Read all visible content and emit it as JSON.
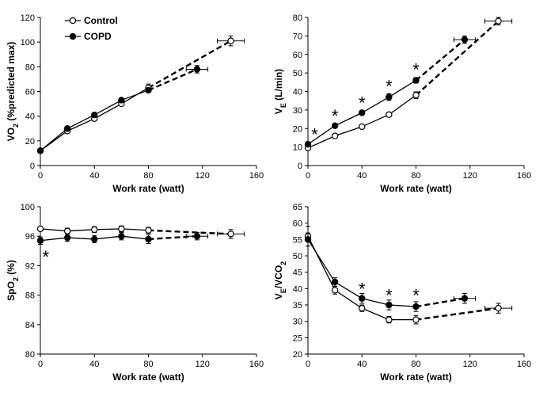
{
  "figure": {
    "legend": [
      {
        "name": "Control",
        "marker": "open-circle"
      },
      {
        "name": "COPD",
        "marker": "filled-circle"
      }
    ]
  },
  "chart_data": [
    {
      "id": "vo2",
      "type": "line",
      "ylabel_main": "VO",
      "ylabel_sub": "2",
      "ylabel_rest": " (%predicted max)",
      "xlabel": "Work rate (watt)",
      "xlim": [
        0,
        160
      ],
      "ylim": [
        0,
        120
      ],
      "xticks": [
        "0",
        "40",
        "80",
        "120",
        "160"
      ],
      "yticks": [
        "0",
        "20",
        "40",
        "60",
        "80",
        "100",
        "120"
      ],
      "series": [
        {
          "name": "Control",
          "marker": "open",
          "points": [
            {
              "x": 0,
              "y": 12
            },
            {
              "x": 20,
              "y": 28
            },
            {
              "x": 40,
              "y": 38
            },
            {
              "x": 60,
              "y": 50
            },
            {
              "x": 80,
              "y": 63
            }
          ],
          "dashed": [
            {
              "x": 80,
              "y": 63
            },
            {
              "x": 141,
              "y": 101
            }
          ],
          "errors": [
            {
              "x": 80,
              "y": 63,
              "yerr": 3
            },
            {
              "x": 141,
              "y": 101,
              "yerr": 4,
              "xerr": 10
            }
          ]
        },
        {
          "name": "COPD",
          "marker": "filled",
          "points": [
            {
              "x": 0,
              "y": 12
            },
            {
              "x": 20,
              "y": 30
            },
            {
              "x": 40,
              "y": 41
            },
            {
              "x": 60,
              "y": 53
            },
            {
              "x": 80,
              "y": 61
            }
          ],
          "dashed": [
            {
              "x": 80,
              "y": 61
            },
            {
              "x": 116,
              "y": 78
            }
          ],
          "errors": [
            {
              "x": 116,
              "y": 78,
              "yerr": 3,
              "xerr": 8
            }
          ]
        }
      ],
      "significance": []
    },
    {
      "id": "ve",
      "type": "line",
      "ylabel_main": "V",
      "ylabel_sub": "E",
      "ylabel_rest": " (L/min)",
      "xlabel": "Work rate (watt)",
      "xlim": [
        0,
        160
      ],
      "ylim": [
        0,
        80
      ],
      "xticks": [
        "0",
        "40",
        "80",
        "120",
        "160"
      ],
      "yticks": [
        "0",
        "10",
        "20",
        "30",
        "40",
        "50",
        "60",
        "70",
        "80"
      ],
      "series": [
        {
          "name": "Control",
          "marker": "open",
          "points": [
            {
              "x": 0,
              "y": 9.5
            },
            {
              "x": 20,
              "y": 16
            },
            {
              "x": 40,
              "y": 21
            },
            {
              "x": 60,
              "y": 27.5
            },
            {
              "x": 80,
              "y": 38
            }
          ],
          "dashed": [
            {
              "x": 80,
              "y": 38
            },
            {
              "x": 141,
              "y": 78
            }
          ],
          "errors": [
            {
              "x": 80,
              "y": 38,
              "yerr": 1.8
            },
            {
              "x": 141,
              "y": 78,
              "yerr": 2,
              "xerr": 10
            }
          ]
        },
        {
          "name": "COPD",
          "marker": "filled",
          "points": [
            {
              "x": 0,
              "y": 11.5
            },
            {
              "x": 20,
              "y": 21.5
            },
            {
              "x": 40,
              "y": 28.5
            },
            {
              "x": 60,
              "y": 37
            },
            {
              "x": 80,
              "y": 46
            }
          ],
          "dashed": [
            {
              "x": 80,
              "y": 46
            },
            {
              "x": 116,
              "y": 68
            }
          ],
          "errors": [
            {
              "x": 60,
              "y": 37,
              "yerr": 1.8
            },
            {
              "x": 80,
              "y": 46,
              "yerr": 1.5
            },
            {
              "x": 116,
              "y": 68,
              "yerr": 2,
              "xerr": 8
            }
          ]
        }
      ],
      "significance": [
        {
          "x": 5,
          "y": 17,
          "label": "*"
        },
        {
          "x": 20,
          "y": 27,
          "label": "*"
        },
        {
          "x": 40,
          "y": 34,
          "label": "*"
        },
        {
          "x": 60,
          "y": 43,
          "label": "*"
        },
        {
          "x": 80,
          "y": 52,
          "label": "*"
        }
      ]
    },
    {
      "id": "spo2",
      "type": "line",
      "ylabel_main": "SpO",
      "ylabel_sub": "2",
      "ylabel_rest": " (%)",
      "xlabel": "Work rate (watt)",
      "xlim": [
        0,
        160
      ],
      "ylim": [
        80,
        100
      ],
      "xticks": [
        "0",
        "40",
        "80",
        "120",
        "160"
      ],
      "yticks": [
        "80",
        "84",
        "88",
        "92",
        "96",
        "100"
      ],
      "series": [
        {
          "name": "Control",
          "marker": "open",
          "points": [
            {
              "x": 0,
              "y": 97
            },
            {
              "x": 20,
              "y": 96.7
            },
            {
              "x": 40,
              "y": 96.9
            },
            {
              "x": 60,
              "y": 97
            },
            {
              "x": 80,
              "y": 96.8
            }
          ],
          "dashed": [
            {
              "x": 80,
              "y": 96.8
            },
            {
              "x": 141,
              "y": 96.3
            }
          ],
          "errors": [
            {
              "x": 20,
              "y": 96.7,
              "yerr": 0.4
            },
            {
              "x": 40,
              "y": 96.9,
              "yerr": 0.4
            },
            {
              "x": 60,
              "y": 97,
              "yerr": 0.4
            },
            {
              "x": 80,
              "y": 96.8,
              "yerr": 0.4
            },
            {
              "x": 141,
              "y": 96.3,
              "yerr": 0.6,
              "xerr": 10
            }
          ]
        },
        {
          "name": "COPD",
          "marker": "filled",
          "points": [
            {
              "x": 0,
              "y": 95.4
            },
            {
              "x": 20,
              "y": 95.8
            },
            {
              "x": 40,
              "y": 95.6
            },
            {
              "x": 60,
              "y": 96
            },
            {
              "x": 80,
              "y": 95.6
            }
          ],
          "dashed": [
            {
              "x": 80,
              "y": 95.6
            },
            {
              "x": 116,
              "y": 96
            }
          ],
          "errors": [
            {
              "x": 0,
              "y": 95.4,
              "yerr": 0.5
            },
            {
              "x": 20,
              "y": 95.8,
              "yerr": 0.5
            },
            {
              "x": 40,
              "y": 95.6,
              "yerr": 0.5
            },
            {
              "x": 60,
              "y": 96,
              "yerr": 0.5
            },
            {
              "x": 80,
              "y": 95.6,
              "yerr": 0.6
            },
            {
              "x": 116,
              "y": 96,
              "yerr": 0.5,
              "xerr": 8
            }
          ]
        }
      ],
      "significance": [
        {
          "x": 4,
          "y": 93.2,
          "label": "*"
        }
      ]
    },
    {
      "id": "ve_vco2",
      "type": "line",
      "ylabel_main": "V",
      "ylabel_sub": "E",
      "ylabel_rest": "/VCO",
      "ylabel_sub2": "2",
      "xlabel": "Work rate (watt)",
      "xlim": [
        0,
        160
      ],
      "ylim": [
        20,
        65
      ],
      "xticks": [
        "0",
        "40",
        "80",
        "120",
        "160"
      ],
      "yticks": [
        "20",
        "25",
        "30",
        "35",
        "40",
        "45",
        "50",
        "55",
        "60",
        "65"
      ],
      "series": [
        {
          "name": "Control",
          "marker": "open",
          "points": [
            {
              "x": 0,
              "y": 56
            },
            {
              "x": 20,
              "y": 39.5
            },
            {
              "x": 40,
              "y": 34
            },
            {
              "x": 60,
              "y": 30.5
            },
            {
              "x": 80,
              "y": 30.5
            }
          ],
          "dashed": [
            {
              "x": 80,
              "y": 30.5
            },
            {
              "x": 141,
              "y": 34
            }
          ],
          "errors": [
            {
              "x": 0,
              "y": 56,
              "yerr": 3
            },
            {
              "x": 20,
              "y": 39.5,
              "yerr": 1.2
            },
            {
              "x": 40,
              "y": 34,
              "yerr": 1
            },
            {
              "x": 60,
              "y": 30.5,
              "yerr": 1
            },
            {
              "x": 80,
              "y": 30.5,
              "yerr": 1.3
            },
            {
              "x": 141,
              "y": 34,
              "yerr": 1.5,
              "xerr": 10
            }
          ]
        },
        {
          "name": "COPD",
          "marker": "filled",
          "points": [
            {
              "x": 0,
              "y": 55
            },
            {
              "x": 20,
              "y": 42
            },
            {
              "x": 40,
              "y": 37
            },
            {
              "x": 60,
              "y": 35
            },
            {
              "x": 80,
              "y": 34.5
            }
          ],
          "dashed": [
            {
              "x": 80,
              "y": 34.5
            },
            {
              "x": 116,
              "y": 37
            }
          ],
          "errors": [
            {
              "x": 0,
              "y": 55,
              "yerr": 2
            },
            {
              "x": 20,
              "y": 42,
              "yerr": 1.3
            },
            {
              "x": 40,
              "y": 37,
              "yerr": 1.5
            },
            {
              "x": 60,
              "y": 35,
              "yerr": 1.5
            },
            {
              "x": 80,
              "y": 34.5,
              "yerr": 1.5
            },
            {
              "x": 116,
              "y": 37,
              "yerr": 1.5,
              "xerr": 8
            }
          ]
        }
      ],
      "significance": [
        {
          "x": 40,
          "y": 40,
          "label": "*"
        },
        {
          "x": 60,
          "y": 38,
          "label": "*"
        },
        {
          "x": 80,
          "y": 38,
          "label": "*"
        }
      ]
    }
  ]
}
